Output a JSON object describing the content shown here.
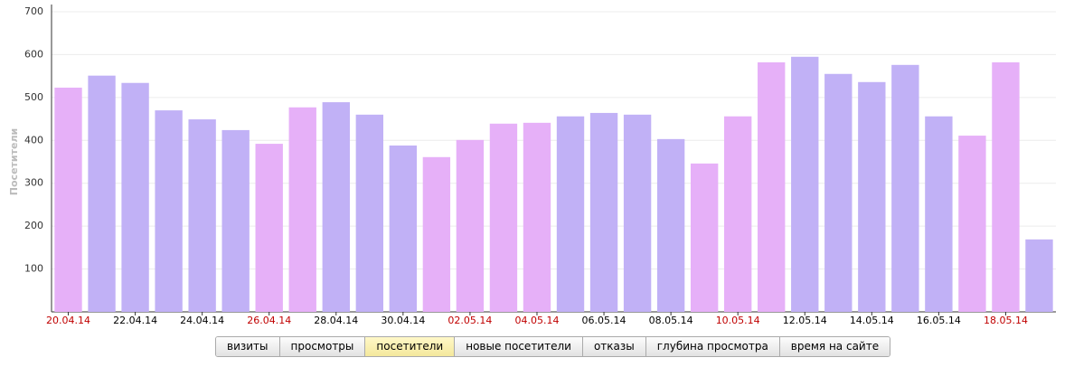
{
  "chart_data": {
    "type": "bar",
    "y_label": "Посетители",
    "categories": [
      "20.04.14",
      null,
      "22.04.14",
      null,
      "24.04.14",
      null,
      "26.04.14",
      null,
      "28.04.14",
      null,
      "30.04.14",
      null,
      "02.05.14",
      null,
      "04.05.14",
      null,
      "06.05.14",
      null,
      "08.05.14",
      null,
      "10.05.14",
      null,
      "12.05.14",
      null,
      "14.05.14",
      null,
      "16.05.14",
      null,
      "18.05.14",
      null
    ],
    "values": [
      523,
      551,
      534,
      470,
      449,
      424,
      392,
      477,
      489,
      460,
      388,
      361,
      401,
      439,
      441,
      456,
      464,
      460,
      403,
      346,
      456,
      582,
      595,
      555,
      536,
      576,
      456,
      411,
      582,
      169
    ],
    "colors": [
      "#e6b0f8",
      "#c1b1f6",
      "#c1b1f6",
      "#c1b1f6",
      "#c1b1f6",
      "#c1b1f6",
      "#e6b0f8",
      "#e6b0f8",
      "#c1b1f6",
      "#c1b1f6",
      "#c1b1f6",
      "#e6b0f8",
      "#e6b0f8",
      "#e6b0f8",
      "#e6b0f8",
      "#c1b1f6",
      "#c1b1f6",
      "#c1b1f6",
      "#c1b1f6",
      "#e6b0f8",
      "#e6b0f8",
      "#e6b0f8",
      "#c1b1f6",
      "#c1b1f6",
      "#c1b1f6",
      "#c1b1f6",
      "#c1b1f6",
      "#e6b0f8",
      "#e6b0f8",
      "#c1b1f6"
    ],
    "label_colors": [
      "#c00000",
      null,
      "#000000",
      null,
      "#000000",
      null,
      "#c00000",
      null,
      "#000000",
      null,
      "#000000",
      null,
      "#c00000",
      null,
      "#c00000",
      null,
      "#000000",
      null,
      "#000000",
      null,
      "#c00000",
      null,
      "#000000",
      null,
      "#000000",
      null,
      "#000000",
      null,
      "#c00000",
      null
    ],
    "ylim": [
      0,
      700
    ],
    "yticks": [
      100,
      200,
      300,
      400,
      500,
      600,
      700
    ],
    "grid": true
  },
  "tabs": {
    "items": [
      "визиты",
      "просмотры",
      "посетители",
      "новые посетители",
      "отказы",
      "глубина просмотра",
      "время на сайте"
    ],
    "active": 2
  }
}
